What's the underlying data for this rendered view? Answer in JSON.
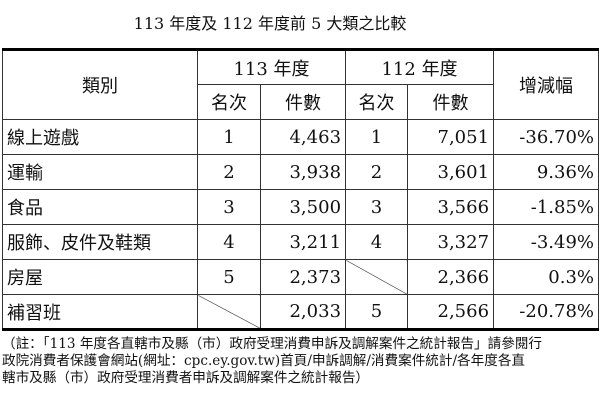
{
  "title": "113 年度及 112 年度前 5 大類之比較",
  "header": {
    "category": "類別",
    "year113": "113 年度",
    "year112": "112 年度",
    "change": "增減幅",
    "rank": "名次",
    "count": "件數"
  },
  "rows": [
    {
      "category": "線上遊戲",
      "rank113": "1",
      "count113": "4,463",
      "rank112": "1",
      "count112": "7,051",
      "change": "-36.70%"
    },
    {
      "category": "運輸",
      "rank113": "2",
      "count113": "3,938",
      "rank112": "2",
      "count112": "3,601",
      "change": "9.36%"
    },
    {
      "category": "食品",
      "rank113": "3",
      "count113": "3,500",
      "rank112": "3",
      "count112": "3,566",
      "change": "-1.85%"
    },
    {
      "category": "服飾、皮件及鞋類",
      "rank113": "4",
      "count113": "3,211",
      "rank112": "4",
      "count112": "3,327",
      "change": "-3.49%"
    },
    {
      "category": "房屋",
      "rank113": "5",
      "count113": "2,373",
      "rank112": "",
      "count112": "2,366",
      "change": "0.3%"
    },
    {
      "category": "補習班",
      "rank113": "",
      "count113": "2,033",
      "rank112": "5",
      "count112": "2,566",
      "change": "-20.78%"
    }
  ],
  "note": [
    "（註：「113 年度各直轄市及縣（市）政府受理消費申訴及調解案件之統計報告」請參閱行",
    "政院消費者保護會網站(網址：cpc.ey.gov.tw)首頁/申訴調解/消費案件統計/各年度各直",
    "轄市及縣（市）政府受理消費者申訴及調解案件之統計報告）"
  ]
}
